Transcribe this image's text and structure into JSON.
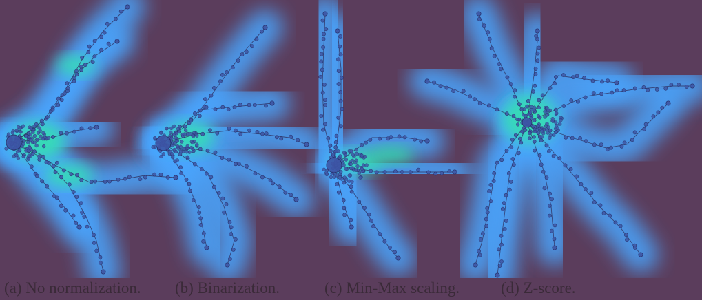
{
  "captions": {
    "a": "(a) No normalization.",
    "b": "(b) Binarization.",
    "c": "(c) Min-Max scaling.",
    "d": "(d) Z-score."
  },
  "colors": {
    "background": "#5b3d5c",
    "halo": "#4aa6ff",
    "density_core": "#34e0b0",
    "node": "#3f5aa8",
    "edge": "#2e2a55",
    "caption_text": "#3a2a38"
  },
  "panels": [
    {
      "id": "a",
      "label_key": "captions.a"
    },
    {
      "id": "b",
      "label_key": "captions.b"
    },
    {
      "id": "c",
      "label_key": "captions.c"
    },
    {
      "id": "d",
      "label_key": "captions.d"
    }
  ]
}
